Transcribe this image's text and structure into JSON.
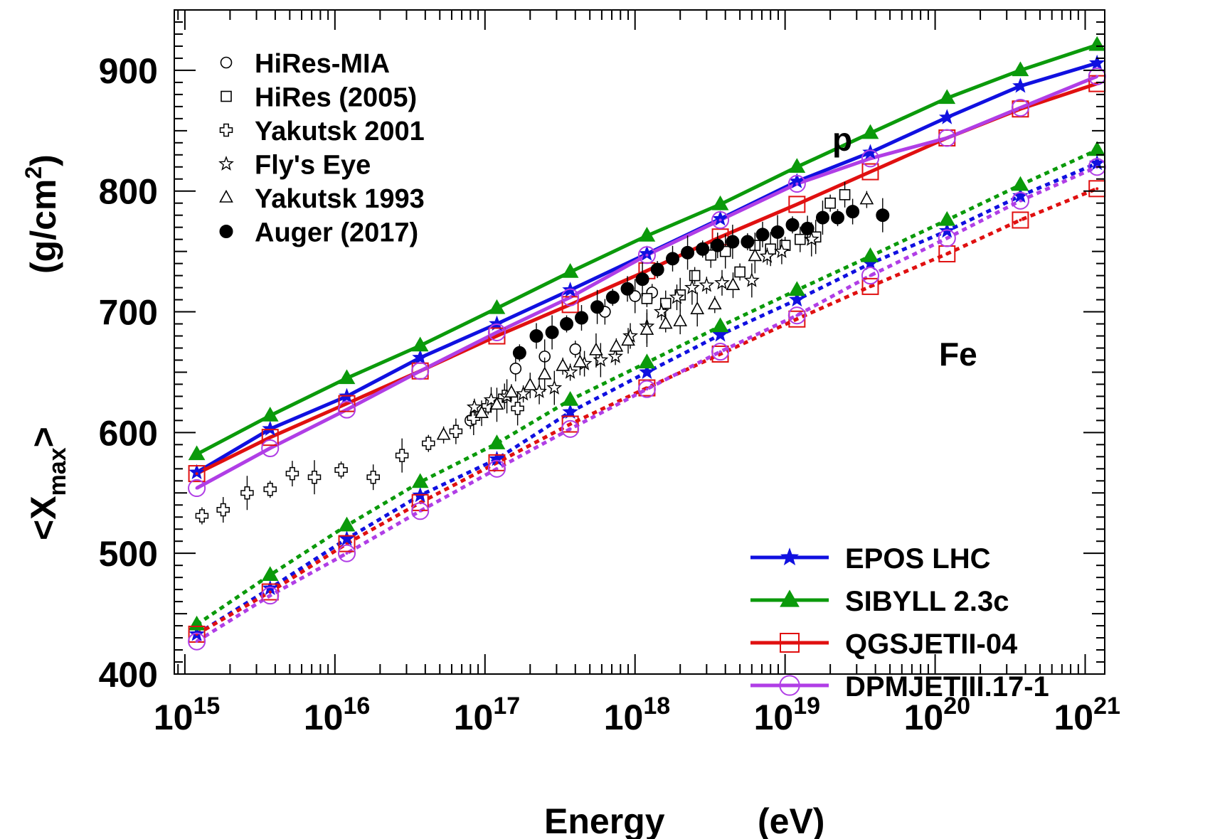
{
  "chart_data": {
    "type": "line",
    "xlabel": "Energy",
    "xunit": "(eV)",
    "ylabel_parts": {
      "pre": "<X",
      "sub": "max",
      "post": ">",
      "unit_pre": "(g/cm",
      "unit_sup": "2",
      "unit_post": ")"
    },
    "xscale": "log",
    "xlim": [
      850000000000000.0,
      1.35e+21
    ],
    "ylim": [
      400,
      950
    ],
    "grid": false,
    "x_tick_labels": [
      {
        "base": "10",
        "exp": "15",
        "value": 1000000000000000.0
      },
      {
        "base": "10",
        "exp": "16",
        "value": 1e+16
      },
      {
        "base": "10",
        "exp": "17",
        "value": 1e+17
      },
      {
        "base": "10",
        "exp": "18",
        "value": 1e+18
      },
      {
        "base": "10",
        "exp": "19",
        "value": 1e+19
      },
      {
        "base": "10",
        "exp": "20",
        "value": 1e+20
      },
      {
        "base": "10",
        "exp": "21",
        "value": 1e+21
      }
    ],
    "y_tick_labels": [
      "400",
      "500",
      "600",
      "700",
      "800",
      "900"
    ],
    "y_tick_values": [
      400,
      500,
      600,
      700,
      800,
      900
    ],
    "annotations": [
      {
        "text": "p",
        "x": 2e+18,
        "y": 835
      },
      {
        "text": "Fe",
        "x": 5.5e+19,
        "y": 688
      }
    ],
    "model_energies": [
      1200000000000000.0,
      3700000000000000.0,
      1.2e+16,
      3.7e+16,
      1.2e+17,
      3.7e+17,
      1.2e+18,
      3.7e+18,
      1.2e+19,
      3.7e+19,
      1.2e+20,
      3.7e+20,
      1.2e+21
    ],
    "model_legend_position": "bottom-right",
    "models": [
      {
        "name": "EPOS LHC",
        "color": "#1010e0",
        "marker": "star",
        "proton": [
          567,
          603,
          630,
          662,
          690,
          718,
          748,
          777,
          808,
          832,
          861,
          887,
          906
        ],
        "iron": [
          433,
          471,
          512,
          548,
          578,
          617,
          650,
          681,
          710,
          740,
          767,
          796,
          823
        ]
      },
      {
        "name": "SIBYLL 2.3c",
        "color": "#0b9a0b",
        "marker": "triangle",
        "proton": [
          582,
          614,
          645,
          672,
          703,
          733,
          763,
          789,
          820,
          848,
          877,
          900,
          921
        ],
        "iron": [
          441,
          482,
          523,
          559,
          591,
          627,
          658,
          688,
          718,
          746,
          776,
          805,
          834
        ]
      },
      {
        "name": "QGSJETII-04",
        "color": "#e01010",
        "marker": "square",
        "proton": [
          566,
          596,
          624,
          651,
          680,
          706,
          734,
          762,
          789,
          816,
          844,
          868,
          889
        ],
        "iron": [
          433,
          468,
          508,
          542,
          575,
          607,
          637,
          665,
          694,
          721,
          748,
          776,
          802
        ]
      },
      {
        "name": "DPMJETIII.17-1",
        "color": "#b03ee6",
        "marker": "circle",
        "proton": [
          554,
          587,
          619,
          651,
          683,
          712,
          747,
          776,
          806,
          827,
          844,
          869,
          895
        ],
        "iron": [
          427,
          465,
          500,
          535,
          570,
          603,
          636,
          667,
          697,
          730,
          761,
          792,
          820
        ]
      }
    ],
    "data_legend_position": "top-left",
    "datasets": [
      {
        "name": "HiRes-MIA",
        "marker": "open-circle",
        "points": [
          [
            8e+16,
            610
          ],
          [
            1.6e+17,
            653
          ],
          [
            2.5e+17,
            663
          ],
          [
            4e+17,
            669
          ],
          [
            6.3e+17,
            700
          ],
          [
            1e+18,
            713
          ],
          [
            1.3e+18,
            716
          ]
        ]
      },
      {
        "name": "HiRes (2005)",
        "marker": "open-square",
        "points": [
          [
            1.2e+18,
            711
          ],
          [
            1.6e+18,
            707
          ],
          [
            2e+18,
            714
          ],
          [
            2.5e+18,
            730
          ],
          [
            3.2e+18,
            747
          ],
          [
            4e+18,
            750
          ],
          [
            5e+18,
            733
          ],
          [
            6.3e+18,
            755
          ],
          [
            8e+18,
            752
          ],
          [
            1e+19,
            755
          ],
          [
            1.26e+19,
            760
          ],
          [
            1.6e+19,
            762
          ],
          [
            2e+19,
            790
          ],
          [
            2.5e+19,
            797
          ]
        ]
      },
      {
        "name": "Yakutsk 2001",
        "marker": "open-cross",
        "points": [
          [
            1300000000000000.0,
            531
          ],
          [
            1800000000000000.0,
            536
          ],
          [
            2600000000000000.0,
            550
          ],
          [
            3700000000000000.0,
            553
          ],
          [
            5200000000000000.0,
            566
          ],
          [
            7300000000000000.0,
            563
          ],
          [
            1.1e+16,
            569
          ],
          [
            1.8e+16,
            563
          ],
          [
            2.8e+16,
            581
          ],
          [
            4.2e+16,
            591
          ],
          [
            6.4e+16,
            601
          ],
          [
            8.4e+16,
            612
          ],
          [
            1.05e+17,
            622
          ],
          [
            1.35e+17,
            630
          ],
          [
            1.65e+17,
            620
          ]
        ]
      },
      {
        "name": "Fly's Eye",
        "marker": "open-star",
        "points": [
          [
            8.5e+16,
            621
          ],
          [
            1.1e+17,
            627
          ],
          [
            1.4e+17,
            630
          ],
          [
            1.8e+17,
            632
          ],
          [
            2.3e+17,
            634
          ],
          [
            2.9e+17,
            637
          ],
          [
            3.7e+17,
            650
          ],
          [
            4.6e+17,
            657
          ],
          [
            5.9e+17,
            660
          ],
          [
            7.4e+17,
            663
          ],
          [
            9.3e+17,
            680
          ],
          [
            1.2e+18,
            688
          ],
          [
            1.5e+18,
            700
          ],
          [
            1.9e+18,
            712
          ],
          [
            2.4e+18,
            720
          ],
          [
            3e+18,
            722
          ],
          [
            3.8e+18,
            724
          ],
          [
            6e+18,
            726
          ],
          [
            7.6e+18,
            746
          ],
          [
            9.5e+18,
            750
          ],
          [
            1.5e+19,
            760
          ]
        ]
      },
      {
        "name": "Yakutsk 1993",
        "marker": "open-triangle",
        "points": [
          [
            5.3e+16,
            598
          ],
          [
            9.5e+16,
            616
          ],
          [
            1.2e+17,
            623
          ],
          [
            1.5e+17,
            633
          ],
          [
            2e+17,
            639
          ],
          [
            2.5e+17,
            648
          ],
          [
            3.3e+17,
            655
          ],
          [
            4.3e+17,
            658
          ],
          [
            5.5e+17,
            668
          ],
          [
            7.5e+17,
            671
          ],
          [
            9e+17,
            676
          ],
          [
            1.2e+18,
            685
          ],
          [
            1.6e+18,
            690
          ],
          [
            2e+18,
            692
          ],
          [
            2.6e+18,
            702
          ],
          [
            3.4e+18,
            706
          ],
          [
            4.5e+18,
            722
          ],
          [
            6.3e+18,
            746
          ],
          [
            3.5e+19,
            793
          ]
        ]
      },
      {
        "name": "Auger (2017)",
        "marker": "filled-circle",
        "points": [
          [
            1.7e+17,
            666
          ],
          [
            2.2e+17,
            680
          ],
          [
            2.8e+17,
            683
          ],
          [
            3.5e+17,
            690
          ],
          [
            4.4e+17,
            695
          ],
          [
            5.6e+17,
            704
          ],
          [
            7.1e+17,
            712
          ],
          [
            8.9e+17,
            719
          ],
          [
            1.12e+18,
            727
          ],
          [
            1.41e+18,
            735
          ],
          [
            1.78e+18,
            744
          ],
          [
            2.24e+18,
            749
          ],
          [
            2.82e+18,
            752
          ],
          [
            3.55e+18,
            755
          ],
          [
            4.47e+18,
            758
          ],
          [
            5.62e+18,
            758
          ],
          [
            7.08e+18,
            764
          ],
          [
            8.91e+18,
            766
          ],
          [
            1.12e+19,
            772
          ],
          [
            1.41e+19,
            769
          ],
          [
            1.78e+19,
            778
          ],
          [
            2.24e+19,
            778
          ],
          [
            2.82e+19,
            783
          ],
          [
            4.47e+19,
            780
          ]
        ]
      }
    ]
  }
}
